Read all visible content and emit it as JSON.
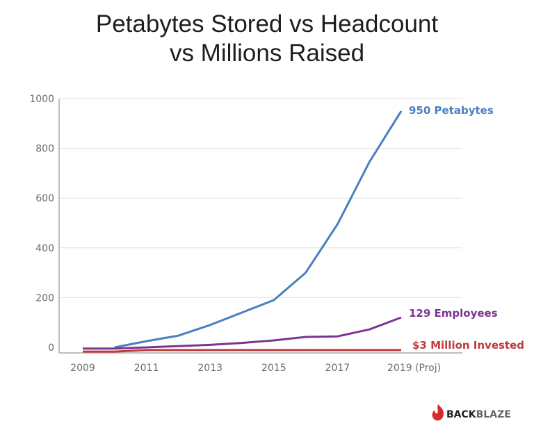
{
  "chart_data": {
    "type": "line",
    "title": [
      "Petabytes Stored vs Headcount",
      "vs Millions Raised"
    ],
    "xlabel": "",
    "ylabel": "",
    "x": [
      2009,
      2010,
      2011,
      2012,
      2013,
      2014,
      2015,
      2016,
      2017,
      2018,
      2019
    ],
    "x_tick_labels": [
      "2009",
      "2011",
      "2013",
      "2015",
      "2017",
      "2019 (Proj)"
    ],
    "x_tick_values": [
      2009,
      2011,
      2013,
      2015,
      2017,
      2019
    ],
    "y_ticks": [
      0,
      200,
      400,
      600,
      800,
      1000
    ],
    "ylim": [
      -25,
      1000
    ],
    "grid": true,
    "series": [
      {
        "name": "950 Petabytes",
        "color": "#4a7fc1",
        "values": [
          null,
          0,
          25,
          47,
          90,
          140,
          190,
          300,
          495,
          745,
          950
        ]
      },
      {
        "name": "129 Employees",
        "color": "#7b3590",
        "values": [
          -5,
          -5,
          0,
          5,
          10,
          18,
          28,
          42,
          44,
          72,
          120
        ]
      },
      {
        "name": "$3 Million Invested",
        "color": "#c0393b",
        "values": [
          -17,
          -17,
          -11,
          -11,
          -11,
          -11,
          -11,
          -11,
          -11,
          -11,
          -11
        ]
      }
    ]
  },
  "logo": {
    "text_bold": "BACK",
    "text_light": "BLAZE",
    "flame_color": "#d52b2b"
  }
}
